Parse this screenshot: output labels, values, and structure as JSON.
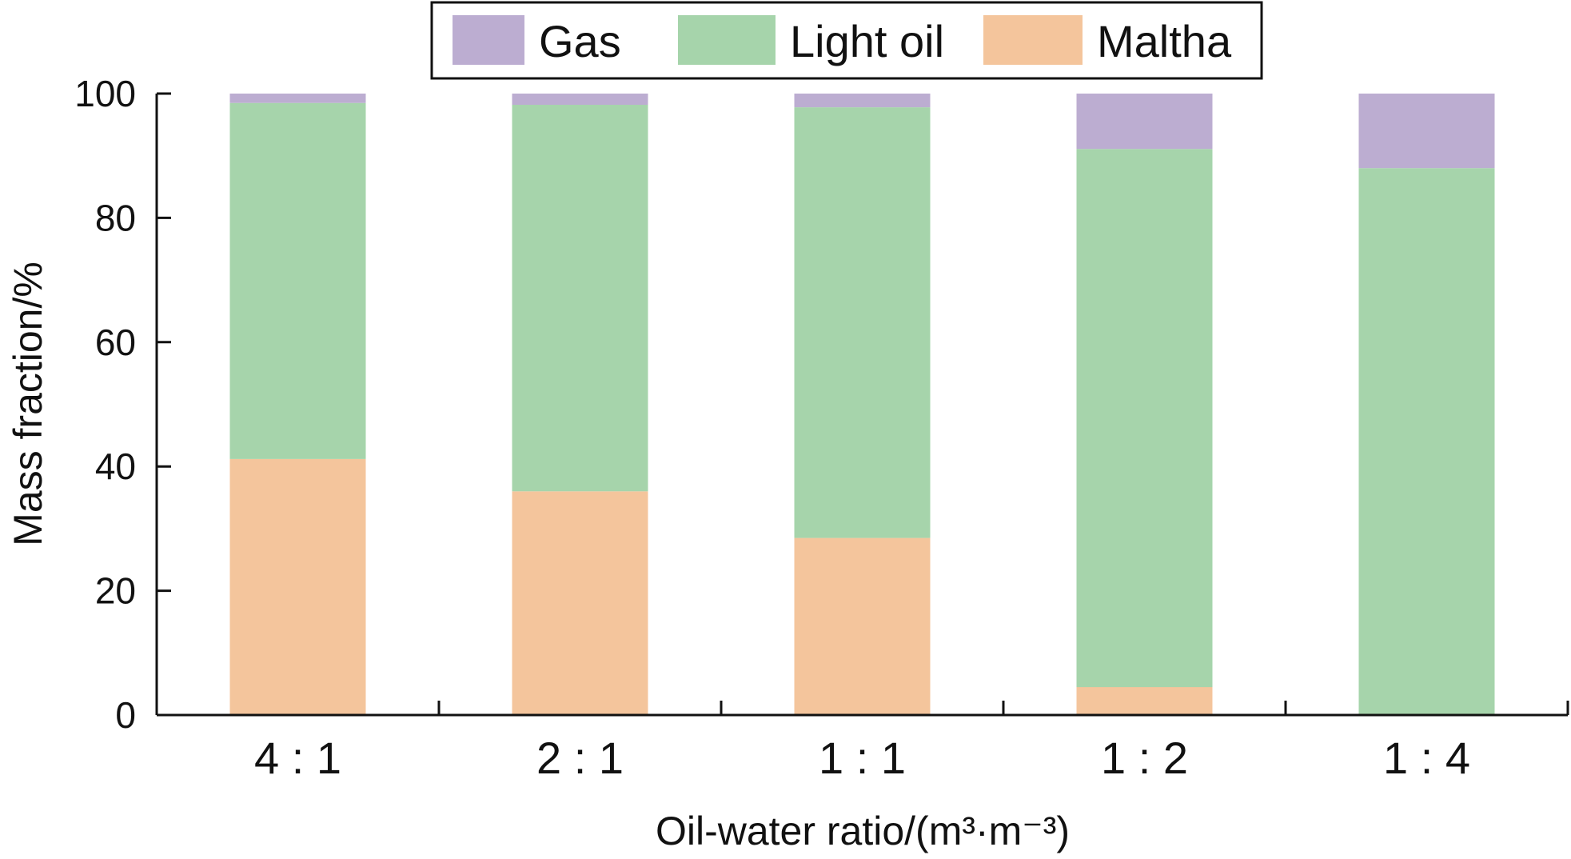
{
  "chart_data": {
    "type": "bar",
    "stacked": true,
    "title": "",
    "xlabel": "Oil-water ratio/(m³·m⁻³)",
    "ylabel": "Mass fraction/%",
    "ylim": [
      0,
      100
    ],
    "yticks": [
      "0",
      "20",
      "40",
      "60",
      "80",
      "100"
    ],
    "categories": [
      "4 : 1",
      "2 : 1",
      "1 : 1",
      "1 : 2",
      "1 : 4"
    ],
    "series": [
      {
        "name": "Maltha",
        "color": "#f4c59c",
        "values": [
          41.2,
          36.0,
          28.5,
          4.5,
          0.0
        ]
      },
      {
        "name": "Light oil",
        "color": "#a6d4ab",
        "values": [
          57.3,
          62.2,
          69.3,
          86.6,
          88.0
        ]
      },
      {
        "name": "Gas",
        "color": "#bcadd1",
        "values": [
          1.5,
          1.8,
          2.2,
          8.9,
          12.0
        ]
      }
    ],
    "legend": {
      "position": "top-center",
      "order": [
        "Gas",
        "Light oil",
        "Maltha"
      ]
    },
    "grid": false
  }
}
